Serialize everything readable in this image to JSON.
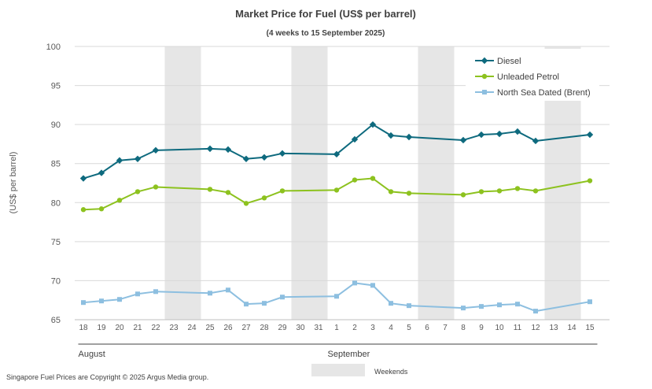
{
  "chart_data": {
    "type": "line",
    "title": "Market Price for Fuel (US$ per barrel)",
    "subtitle": "(4 weeks to 15 September 2025)",
    "ylabel": "(US$ per barrel)",
    "ylim": [
      65,
      100
    ],
    "yticks": [
      65,
      70,
      75,
      80,
      85,
      90,
      95,
      100
    ],
    "x": [
      "18",
      "19",
      "20",
      "21",
      "22",
      "23",
      "24",
      "25",
      "26",
      "27",
      "28",
      "29",
      "30",
      "31",
      "1",
      "2",
      "3",
      "4",
      "5",
      "6",
      "7",
      "8",
      "9",
      "10",
      "11",
      "12",
      "13",
      "14",
      "15"
    ],
    "months": [
      {
        "label": "August",
        "start": 0,
        "end": 13
      },
      {
        "label": "September",
        "start": 14,
        "end": 28
      }
    ],
    "weekend_indices": [
      5,
      6,
      12,
      13,
      19,
      20,
      26,
      27
    ],
    "series": [
      {
        "name": "Diesel",
        "color": "#0e6a7e",
        "marker": "diamond",
        "values": [
          83.1,
          83.8,
          85.4,
          85.6,
          86.7,
          null,
          null,
          86.9,
          86.8,
          85.6,
          85.8,
          86.3,
          null,
          null,
          86.2,
          88.1,
          90.0,
          88.6,
          88.4,
          null,
          null,
          88.0,
          88.7,
          88.8,
          89.1,
          87.9,
          null,
          null,
          88.7
        ]
      },
      {
        "name": "Unleaded Petrol",
        "color": "#8dc21f",
        "marker": "circle",
        "values": [
          79.1,
          79.2,
          80.3,
          81.4,
          82.0,
          null,
          null,
          81.7,
          81.3,
          79.9,
          80.6,
          81.5,
          null,
          null,
          81.6,
          82.9,
          83.1,
          81.4,
          81.2,
          null,
          null,
          81.0,
          81.4,
          81.5,
          81.8,
          81.5,
          null,
          null,
          82.8
        ]
      },
      {
        "name": "North Sea Dated (Brent)",
        "color": "#8dbfe0",
        "marker": "square",
        "values": [
          67.2,
          67.4,
          67.6,
          68.3,
          68.6,
          null,
          null,
          68.4,
          68.8,
          67.0,
          67.1,
          67.9,
          null,
          null,
          68.0,
          69.7,
          69.4,
          67.1,
          66.8,
          null,
          null,
          66.5,
          66.7,
          66.9,
          67.0,
          66.1,
          null,
          null,
          67.3
        ]
      }
    ],
    "legend_position": "top-right",
    "weekend_label": "Weekends",
    "weekend_color": "#e6e6e6",
    "grid": true
  },
  "footer": {
    "copyright": "Singapore Fuel Prices are Copyright © 2025 Argus Media group."
  }
}
